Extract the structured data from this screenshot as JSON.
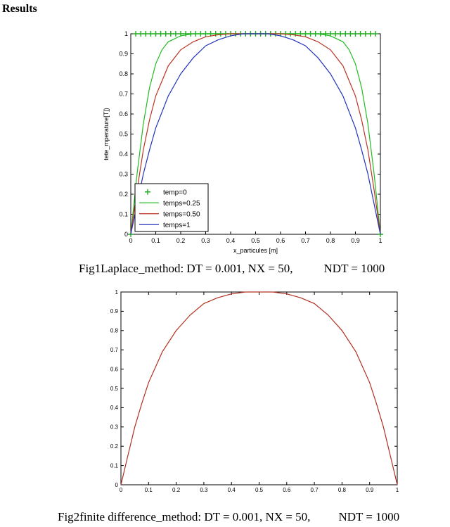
{
  "heading": "Results",
  "chart_data": [
    {
      "type": "line",
      "xlabel": "x_particules [m]",
      "ylabel": "tete_mperature[T])",
      "xlim": [
        0,
        1
      ],
      "ylim": [
        0,
        1
      ],
      "xticks": [
        "0",
        "0.1",
        "0.2",
        "0.3",
        "0.4",
        "0.5",
        "0.6",
        "0.7",
        "0.8",
        "0.9",
        "1"
      ],
      "yticks": [
        "0",
        "0.1",
        "0.2",
        "0.3",
        "0.4",
        "0.5",
        "0.6",
        "0.7",
        "0.8",
        "0.9",
        "1"
      ],
      "grid": false,
      "legend_position": "bottom-left",
      "series": [
        {
          "name": "temp=0",
          "color": "#22aa22",
          "marker": "plus",
          "x": [
            0,
            0.02,
            0.04,
            0.06,
            0.08,
            0.1,
            0.12,
            0.14,
            0.16,
            0.18,
            0.2,
            0.22,
            0.24,
            0.26,
            0.28,
            0.3,
            0.32,
            0.34,
            0.36,
            0.38,
            0.4,
            0.42,
            0.44,
            0.46,
            0.48,
            0.5,
            0.52,
            0.54,
            0.56,
            0.58,
            0.6,
            0.62,
            0.64,
            0.66,
            0.68,
            0.7,
            0.72,
            0.74,
            0.76,
            0.78,
            0.8,
            0.82,
            0.84,
            0.86,
            0.88,
            0.9,
            0.92,
            0.94,
            0.96,
            0.98,
            1.0
          ],
          "y": [
            0,
            1,
            1,
            1,
            1,
            1,
            1,
            1,
            1,
            1,
            1,
            1,
            1,
            1,
            1,
            1,
            1,
            1,
            1,
            1,
            1,
            1,
            1,
            1,
            1,
            1,
            1,
            1,
            1,
            1,
            1,
            1,
            1,
            1,
            1,
            1,
            1,
            1,
            1,
            1,
            1,
            1,
            1,
            1,
            1,
            1,
            1,
            1,
            1,
            1,
            0
          ]
        },
        {
          "name": "temps=0.25",
          "color": "#22bb22",
          "x": [
            0,
            0.025,
            0.05,
            0.075,
            0.1,
            0.125,
            0.15,
            0.2,
            0.25,
            0.3,
            0.4,
            0.5,
            0.6,
            0.7,
            0.75,
            0.8,
            0.85,
            0.875,
            0.9,
            0.925,
            0.95,
            0.975,
            1
          ],
          "y": [
            0,
            0.3,
            0.55,
            0.73,
            0.85,
            0.92,
            0.96,
            0.99,
            1.0,
            1.0,
            1.0,
            1.0,
            1.0,
            1.0,
            1.0,
            0.99,
            0.96,
            0.92,
            0.85,
            0.73,
            0.55,
            0.3,
            0
          ]
        },
        {
          "name": "temps=0.50",
          "color": "#bb3322",
          "x": [
            0,
            0.025,
            0.05,
            0.075,
            0.1,
            0.15,
            0.2,
            0.25,
            0.3,
            0.35,
            0.4,
            0.5,
            0.6,
            0.65,
            0.7,
            0.75,
            0.8,
            0.85,
            0.9,
            0.925,
            0.95,
            0.975,
            1
          ],
          "y": [
            0,
            0.22,
            0.42,
            0.57,
            0.69,
            0.84,
            0.92,
            0.96,
            0.985,
            0.995,
            1.0,
            1.0,
            1.0,
            0.995,
            0.985,
            0.96,
            0.92,
            0.84,
            0.69,
            0.57,
            0.42,
            0.22,
            0
          ]
        },
        {
          "name": "temps=1",
          "color": "#2233bb",
          "x": [
            0,
            0.025,
            0.05,
            0.075,
            0.1,
            0.15,
            0.2,
            0.25,
            0.3,
            0.35,
            0.4,
            0.45,
            0.5,
            0.55,
            0.6,
            0.65,
            0.7,
            0.75,
            0.8,
            0.85,
            0.9,
            0.925,
            0.95,
            0.975,
            1
          ],
          "y": [
            0,
            0.15,
            0.3,
            0.42,
            0.53,
            0.69,
            0.8,
            0.88,
            0.94,
            0.97,
            0.99,
            1.0,
            1.0,
            1.0,
            0.99,
            0.97,
            0.94,
            0.88,
            0.8,
            0.69,
            0.53,
            0.42,
            0.3,
            0.15,
            0
          ]
        }
      ],
      "caption_left": "Fig1Laplace_method: DT = 0.001, NX = 50,",
      "caption_right": "NDT = 1000"
    },
    {
      "type": "line",
      "xlabel": "",
      "ylabel": "",
      "xlim": [
        0,
        1
      ],
      "ylim": [
        0,
        1
      ],
      "xticks": [
        "0",
        "0.1",
        "0.2",
        "0.3",
        "0.4",
        "0.5",
        "0.6",
        "0.7",
        "0.8",
        "0.9",
        "1"
      ],
      "yticks": [
        "0",
        "0.1",
        "0.2",
        "0.3",
        "0.4",
        "0.5",
        "0.6",
        "0.7",
        "0.8",
        "0.9",
        "1"
      ],
      "grid": false,
      "series": [
        {
          "color": "#b03020",
          "x": [
            0,
            0.025,
            0.05,
            0.075,
            0.1,
            0.15,
            0.2,
            0.25,
            0.3,
            0.35,
            0.4,
            0.45,
            0.5,
            0.55,
            0.6,
            0.65,
            0.7,
            0.75,
            0.8,
            0.85,
            0.9,
            0.925,
            0.95,
            0.975,
            1
          ],
          "y": [
            0,
            0.15,
            0.3,
            0.42,
            0.53,
            0.69,
            0.8,
            0.88,
            0.94,
            0.97,
            0.99,
            1.0,
            1.0,
            1.0,
            0.99,
            0.97,
            0.94,
            0.88,
            0.8,
            0.69,
            0.53,
            0.42,
            0.3,
            0.15,
            0
          ]
        }
      ],
      "caption_left": "Fig2finite difference_method: DT = 0.001, NX = 50,",
      "caption_right": "NDT = 1000"
    }
  ]
}
